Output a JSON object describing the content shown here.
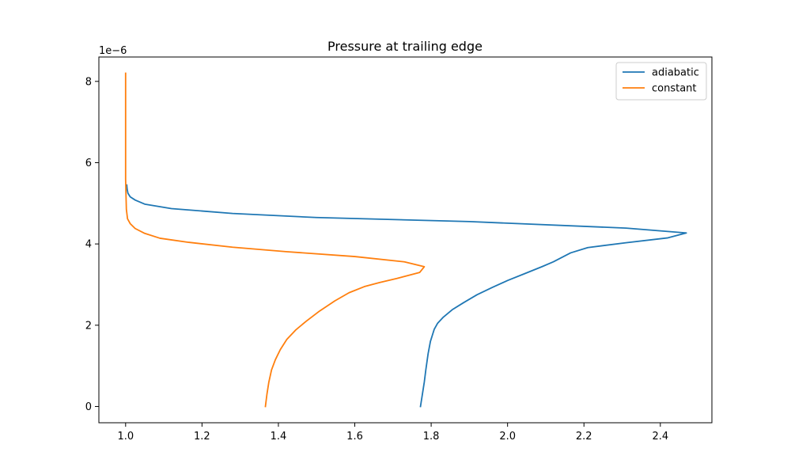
{
  "chart_data": {
    "type": "line",
    "title": "Pressure at trailing edge",
    "xlabel": "",
    "ylabel": "",
    "y_offset_label": "1e−6",
    "xlim": [
      0.93,
      2.535
    ],
    "ylim": [
      -0.4,
      8.6
    ],
    "x_ticks": [
      1.0,
      1.2,
      1.4,
      1.6,
      1.8,
      2.0,
      2.2,
      2.4
    ],
    "x_tick_labels": [
      "1.0",
      "1.2",
      "1.4",
      "1.6",
      "1.8",
      "2.0",
      "2.2",
      "2.4"
    ],
    "y_ticks": [
      0,
      2,
      4,
      6,
      8
    ],
    "y_tick_labels": [
      "0",
      "2",
      "4",
      "6",
      "8"
    ],
    "grid": false,
    "legend_position": "top-right",
    "series": [
      {
        "name": "adiabatic",
        "color": "#1f77b4",
        "x": [
          1.772,
          1.777,
          1.782,
          1.786,
          1.789,
          1.792,
          1.795,
          1.798,
          1.803,
          1.808,
          1.817,
          1.832,
          1.855,
          1.884,
          1.92,
          1.96,
          2.0,
          2.045,
          2.09,
          2.12,
          2.165,
          2.21,
          2.31,
          2.42,
          2.468,
          2.31,
          1.9,
          1.5,
          1.28,
          1.12,
          1.05,
          1.025,
          1.012,
          1.006,
          1.004,
          1.003
        ],
        "y": [
          0.0,
          0.3,
          0.6,
          0.9,
          1.1,
          1.3,
          1.45,
          1.6,
          1.75,
          1.9,
          2.05,
          2.2,
          2.38,
          2.55,
          2.75,
          2.93,
          3.1,
          3.27,
          3.44,
          3.56,
          3.78,
          3.91,
          4.03,
          4.15,
          4.27,
          4.39,
          4.55,
          4.65,
          4.75,
          4.87,
          4.98,
          5.08,
          5.16,
          5.25,
          5.35,
          5.45
        ]
      },
      {
        "name": "constant",
        "color": "#ff7f0e",
        "x": [
          1.366,
          1.37,
          1.375,
          1.382,
          1.392,
          1.405,
          1.422,
          1.445,
          1.473,
          1.508,
          1.548,
          1.585,
          1.625,
          1.665,
          1.71,
          1.77,
          1.782,
          1.73,
          1.6,
          1.42,
          1.28,
          1.165,
          1.09,
          1.05,
          1.025,
          1.012,
          1.005,
          1.002,
          1.001,
          1.0,
          1.0,
          1.0,
          1.0,
          1.0
        ],
        "y": [
          0.0,
          0.3,
          0.6,
          0.9,
          1.15,
          1.4,
          1.65,
          1.88,
          2.1,
          2.35,
          2.6,
          2.8,
          2.95,
          3.05,
          3.15,
          3.3,
          3.44,
          3.56,
          3.69,
          3.81,
          3.92,
          4.04,
          4.14,
          4.26,
          4.38,
          4.5,
          4.62,
          4.85,
          5.2,
          5.6,
          6.2,
          7.0,
          7.6,
          8.2
        ]
      }
    ]
  }
}
